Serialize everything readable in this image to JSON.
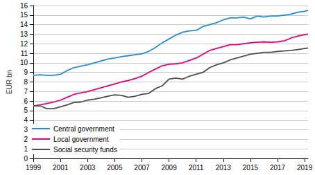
{
  "chart_data": {
    "type": "line",
    "y_label": "EUR bn",
    "x": [
      1999,
      1999.5,
      2000,
      2000.5,
      2001,
      2001.5,
      2002,
      2002.5,
      2003,
      2003.5,
      2004,
      2004.5,
      2005,
      2005.5,
      2006,
      2006.5,
      2007,
      2007.5,
      2008,
      2008.5,
      2009,
      2009.5,
      2010,
      2010.5,
      2011,
      2011.5,
      2012,
      2012.5,
      2013,
      2013.5,
      2014,
      2014.5,
      2015,
      2015.5,
      2016,
      2016.5,
      2017,
      2017.5,
      2018,
      2018.5,
      2019,
      2019.25
    ],
    "series": [
      {
        "name": "Central government",
        "color": "#1f8fd6",
        "values": [
          8.7,
          8.75,
          8.7,
          8.7,
          8.8,
          9.2,
          9.5,
          9.65,
          9.8,
          10.0,
          10.2,
          10.4,
          10.5,
          10.65,
          10.75,
          10.85,
          10.95,
          11.2,
          11.6,
          12.1,
          12.5,
          12.9,
          13.2,
          13.35,
          13.4,
          13.8,
          14.0,
          14.2,
          14.5,
          14.7,
          14.7,
          14.8,
          14.6,
          14.9,
          14.8,
          14.9,
          14.9,
          15.0,
          15.1,
          15.3,
          15.4,
          15.5
        ]
      },
      {
        "name": "Local government",
        "color": "#e6007e",
        "values": [
          5.5,
          5.6,
          5.75,
          5.9,
          6.1,
          6.4,
          6.7,
          6.85,
          7.0,
          7.2,
          7.4,
          7.6,
          7.8,
          8.0,
          8.15,
          8.35,
          8.6,
          9.0,
          9.35,
          9.7,
          9.85,
          9.9,
          10.0,
          10.25,
          10.5,
          10.9,
          11.3,
          11.5,
          11.7,
          11.9,
          11.9,
          12.0,
          12.1,
          12.15,
          12.2,
          12.15,
          12.2,
          12.3,
          12.6,
          12.8,
          12.95,
          13.0
        ]
      },
      {
        "name": "Social security funds",
        "color": "#4d4d4d",
        "values": [
          5.5,
          5.5,
          5.2,
          5.2,
          5.4,
          5.6,
          5.85,
          5.9,
          6.1,
          6.2,
          6.35,
          6.5,
          6.65,
          6.6,
          6.4,
          6.5,
          6.7,
          6.8,
          7.3,
          7.6,
          8.3,
          8.4,
          8.3,
          8.6,
          8.8,
          9.0,
          9.5,
          9.8,
          10.0,
          10.3,
          10.5,
          10.7,
          10.9,
          11.0,
          11.1,
          11.1,
          11.2,
          11.25,
          11.3,
          11.4,
          11.5,
          11.55
        ]
      }
    ],
    "xlim": [
      1999,
      2019.25
    ],
    "xticks": [
      1999,
      2001,
      2003,
      2005,
      2007,
      2009,
      2011,
      2013,
      2015,
      2017,
      2019
    ],
    "ylim": [
      0,
      16
    ],
    "yticks": [
      0,
      1,
      2,
      3,
      4,
      5,
      6,
      7,
      8,
      9,
      10,
      11,
      12,
      13,
      14,
      15,
      16
    ],
    "grid": true,
    "legend": "lower left"
  }
}
